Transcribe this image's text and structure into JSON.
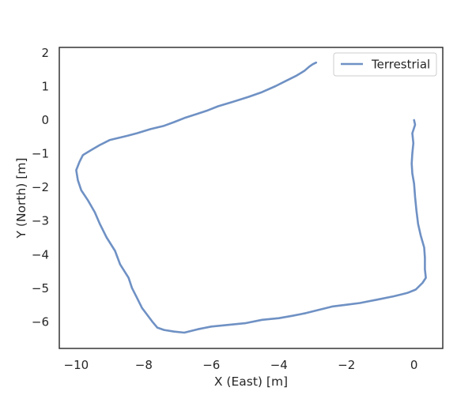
{
  "chart_data": {
    "type": "line",
    "title": "",
    "xlabel": "X (East) [m]",
    "ylabel": "Y (North) [m]",
    "xlim": [
      -10.5,
      0.85
    ],
    "ylim": [
      -6.8,
      2.15
    ],
    "xticks": [
      -10,
      -8,
      -6,
      -4,
      -2,
      0
    ],
    "yticks": [
      2,
      1,
      0,
      -1,
      -2,
      -3,
      -4,
      -5,
      -6
    ],
    "xtick_labels": [
      "−10",
      "−8",
      "−6",
      "−4",
      "−2",
      "0"
    ],
    "ytick_labels": [
      "2",
      "1",
      "0",
      "−1",
      "−2",
      "−3",
      "−4",
      "−5",
      "−6"
    ],
    "grid": false,
    "legend_position": "top-right",
    "series": [
      {
        "name": "Terrestrial",
        "color": "#6f91c4",
        "points": [
          [
            0.0,
            -0.01
          ],
          [
            0.03,
            -0.15
          ],
          [
            -0.05,
            -0.4
          ],
          [
            -0.02,
            -0.7
          ],
          [
            -0.05,
            -1.0
          ],
          [
            -0.07,
            -1.3
          ],
          [
            -0.05,
            -1.6
          ],
          [
            0.0,
            -1.9
          ],
          [
            0.03,
            -2.3
          ],
          [
            0.07,
            -2.7
          ],
          [
            0.12,
            -3.1
          ],
          [
            0.2,
            -3.45
          ],
          [
            0.3,
            -3.8
          ],
          [
            0.32,
            -4.1
          ],
          [
            0.32,
            -4.45
          ],
          [
            0.35,
            -4.7
          ],
          [
            0.25,
            -4.85
          ],
          [
            0.05,
            -5.05
          ],
          [
            -0.2,
            -5.15
          ],
          [
            -0.6,
            -5.25
          ],
          [
            -1.1,
            -5.35
          ],
          [
            -1.6,
            -5.45
          ],
          [
            -2.0,
            -5.5
          ],
          [
            -2.4,
            -5.55
          ],
          [
            -2.8,
            -5.65
          ],
          [
            -3.2,
            -5.75
          ],
          [
            -3.6,
            -5.83
          ],
          [
            -4.0,
            -5.9
          ],
          [
            -4.5,
            -5.95
          ],
          [
            -5.0,
            -6.05
          ],
          [
            -5.5,
            -6.1
          ],
          [
            -6.0,
            -6.15
          ],
          [
            -6.4,
            -6.23
          ],
          [
            -6.8,
            -6.33
          ],
          [
            -7.1,
            -6.3
          ],
          [
            -7.4,
            -6.25
          ],
          [
            -7.6,
            -6.18
          ],
          [
            -7.75,
            -6.0
          ],
          [
            -7.9,
            -5.8
          ],
          [
            -8.05,
            -5.6
          ],
          [
            -8.2,
            -5.3
          ],
          [
            -8.35,
            -5.0
          ],
          [
            -8.45,
            -4.7
          ],
          [
            -8.7,
            -4.3
          ],
          [
            -8.85,
            -3.9
          ],
          [
            -9.1,
            -3.5
          ],
          [
            -9.3,
            -3.1
          ],
          [
            -9.45,
            -2.75
          ],
          [
            -9.65,
            -2.4
          ],
          [
            -9.85,
            -2.1
          ],
          [
            -9.95,
            -1.8
          ],
          [
            -10.0,
            -1.5
          ],
          [
            -9.9,
            -1.25
          ],
          [
            -9.8,
            -1.05
          ],
          [
            -9.55,
            -0.9
          ],
          [
            -9.3,
            -0.75
          ],
          [
            -9.0,
            -0.6
          ],
          [
            -8.5,
            -0.48
          ],
          [
            -8.2,
            -0.4
          ],
          [
            -7.8,
            -0.28
          ],
          [
            -7.4,
            -0.18
          ],
          [
            -7.1,
            -0.07
          ],
          [
            -6.8,
            0.05
          ],
          [
            -6.4,
            0.18
          ],
          [
            -6.1,
            0.28
          ],
          [
            -5.8,
            0.4
          ],
          [
            -5.4,
            0.52
          ],
          [
            -4.9,
            0.68
          ],
          [
            -4.5,
            0.82
          ],
          [
            -4.1,
            1.0
          ],
          [
            -3.8,
            1.15
          ],
          [
            -3.5,
            1.3
          ],
          [
            -3.25,
            1.45
          ],
          [
            -3.1,
            1.58
          ],
          [
            -3.0,
            1.65
          ],
          [
            -2.9,
            1.7
          ]
        ]
      }
    ]
  }
}
